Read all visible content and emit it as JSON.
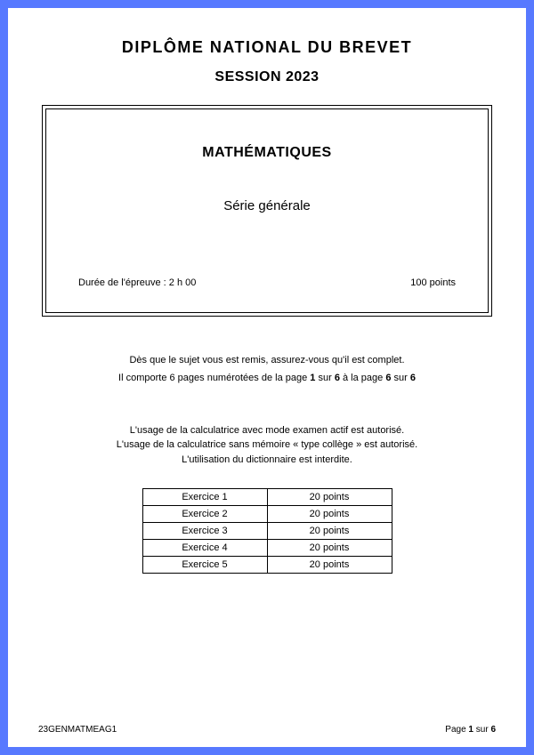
{
  "colors": {
    "frame": "#5779ff",
    "background": "#ffffff",
    "text": "#000000",
    "border": "#000000"
  },
  "header": {
    "title": "DIPLÔME NATIONAL DU BREVET",
    "session": "SESSION 2023"
  },
  "titleBox": {
    "subject": "MATHÉMATIQUES",
    "series": "Série générale",
    "duration": "Durée de l'épreuve : 2 h 00",
    "points": "100 points"
  },
  "instructions": {
    "line1": "Dès que le sujet vous est remis, assurez-vous qu'il est complet.",
    "line2_pre": "Il comporte 6 pages numérotées de la page ",
    "line2_b1": "1",
    "line2_mid1": " sur ",
    "line2_b2": "6",
    "line2_mid2": " à la page ",
    "line2_b3": "6",
    "line2_mid3": " sur ",
    "line2_b4": "6"
  },
  "calculator": {
    "line1": "L'usage de la calculatrice avec mode examen actif est autorisé.",
    "line2": "L'usage de la calculatrice sans mémoire « type collège » est autorisé.",
    "line3": "L'utilisation du dictionnaire est interdite."
  },
  "pointsTable": {
    "rows": [
      {
        "label": "Exercice 1",
        "points": "20 points"
      },
      {
        "label": "Exercice 2",
        "points": "20 points"
      },
      {
        "label": "Exercice 3",
        "points": "20 points"
      },
      {
        "label": "Exercice 4",
        "points": "20 points"
      },
      {
        "label": "Exercice 5",
        "points": "20 points"
      }
    ]
  },
  "footer": {
    "code": "23GENMATMEAG1",
    "page_pre": "Page ",
    "page_num": "1",
    "page_mid": " sur ",
    "page_total": "6"
  }
}
